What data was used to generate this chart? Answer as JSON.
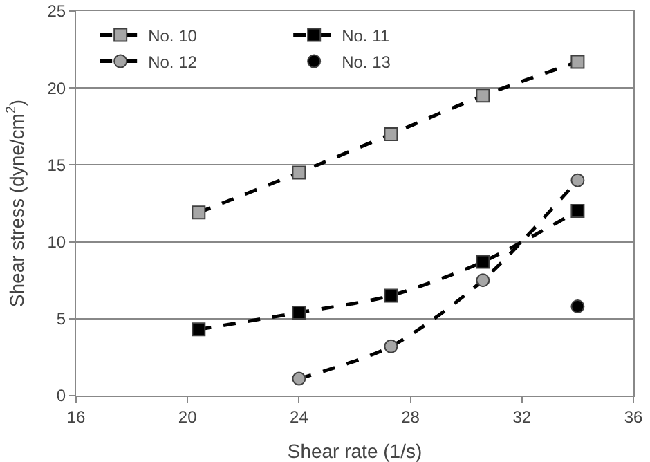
{
  "chart_data": {
    "type": "line",
    "xlabel": "Shear rate (1/s)",
    "ylabel": "Shear stress (dyne/cm$^{2}$)",
    "xlim": [
      16,
      36
    ],
    "xticks": [
      16,
      20,
      24,
      28,
      32,
      36
    ],
    "ylim": [
      0,
      25
    ],
    "yticks": [
      0,
      5,
      10,
      15,
      20,
      25
    ],
    "grid": "y",
    "legend": "top left",
    "line_style": "dashed",
    "series": [
      {
        "name": "No. 10",
        "color": "#a6a6a6",
        "marker": "square",
        "x": [
          20.4,
          24,
          27.3,
          30.6,
          34
        ],
        "values": [
          11.9,
          14.5,
          17,
          19.5,
          21.7
        ]
      },
      {
        "name": "No. 11",
        "color": "#000000",
        "marker": "square",
        "x": [
          20.4,
          24,
          27.3,
          30.6,
          34
        ],
        "values": [
          4.3,
          5.4,
          6.5,
          8.7,
          12
        ]
      },
      {
        "name": "No. 12",
        "color": "#a6a6a6",
        "marker": "circle",
        "x": [
          24,
          27.3,
          30.6,
          34
        ],
        "values": [
          1.1,
          3.2,
          7.5,
          14
        ]
      },
      {
        "name": "No. 13",
        "type": "scatter",
        "color": "#000000",
        "marker": "circle",
        "x": [
          34
        ],
        "values": [
          5.8
        ]
      }
    ]
  }
}
